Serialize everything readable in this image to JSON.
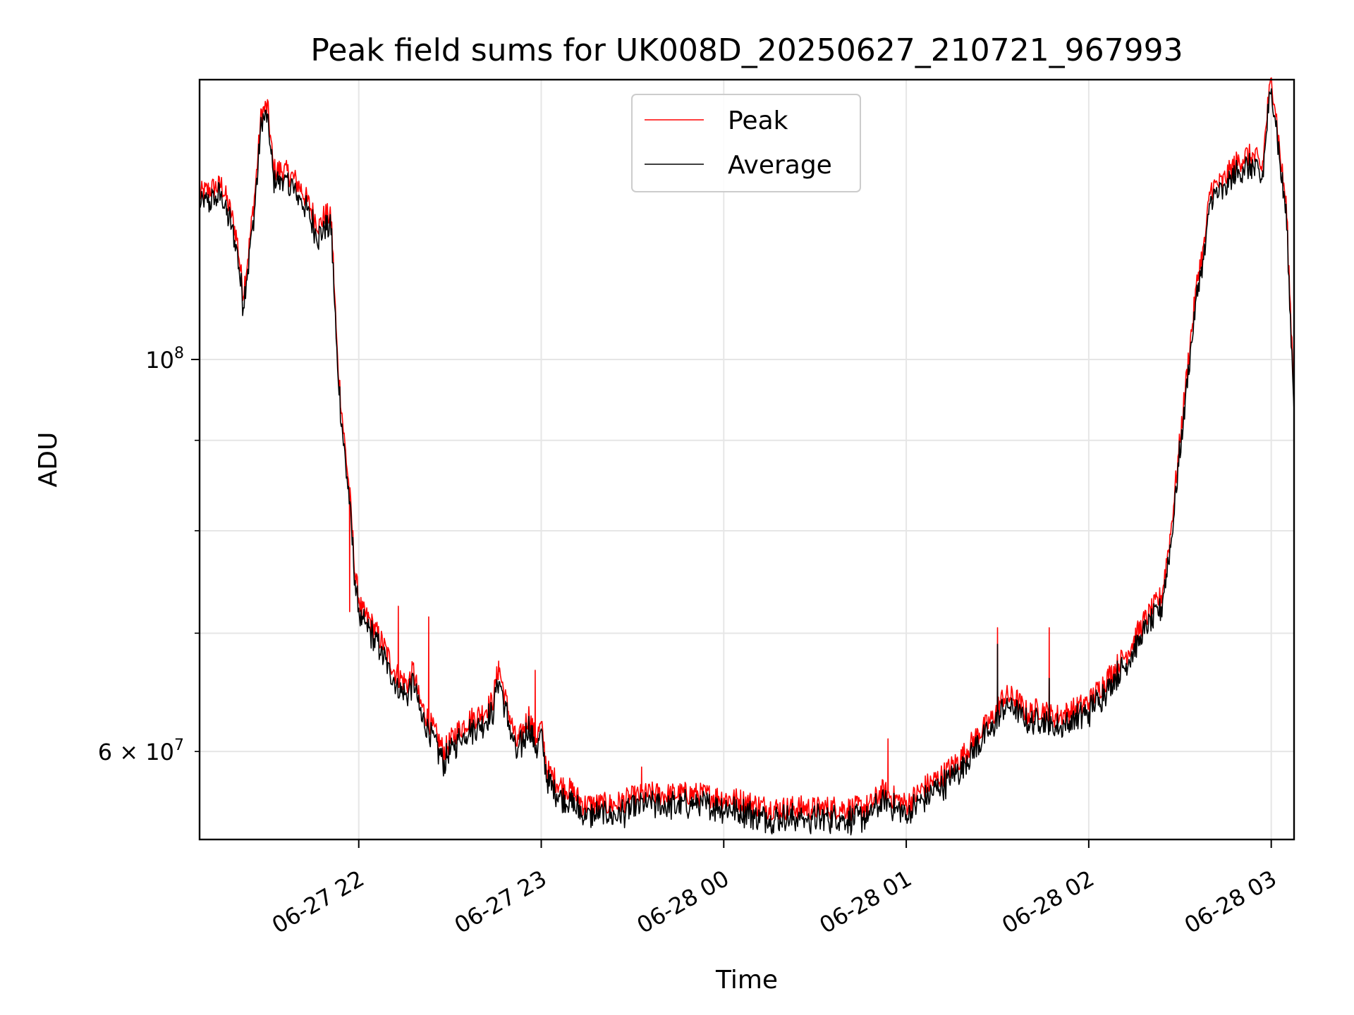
{
  "chart_data": {
    "type": "line",
    "title": "Peak field sums for UK008D_20250627_210721_967993",
    "xlabel": "Time",
    "ylabel": "ADU",
    "yscale": "log",
    "ylim": [
      53500000,
      144000000
    ],
    "xlim": [
      "2025-06-27 21:07:40",
      "2025-06-28 03:07:30"
    ],
    "grid": true,
    "legend_position": "upper center",
    "x_ticks": [
      "06-27 22",
      "06-27 23",
      "06-28 00",
      "06-28 01",
      "06-28 02",
      "06-28 03"
    ],
    "x_tick_times": [
      "2025-06-27 22:00",
      "2025-06-27 23:00",
      "2025-06-28 00:00",
      "2025-06-28 01:00",
      "2025-06-28 02:00",
      "2025-06-28 03:00"
    ],
    "y_tick_labels": {
      "major": "10^8",
      "minor_labeled": "6 × 10^7"
    },
    "series": [
      {
        "name": "Peak",
        "color": "#ff0000",
        "points": [
          [
            "2025-06-27 21:07:40",
            124000000
          ],
          [
            "2025-06-27 21:12",
            125000000
          ],
          [
            "2025-06-27 21:15",
            125500000
          ],
          [
            "2025-06-27 21:18",
            121000000
          ],
          [
            "2025-06-27 21:20",
            117000000
          ],
          [
            "2025-06-27 21:22",
            109000000
          ],
          [
            "2025-06-27 21:24",
            116000000
          ],
          [
            "2025-06-27 21:26",
            125000000
          ],
          [
            "2025-06-27 21:28",
            138000000
          ],
          [
            "2025-06-27 21:30",
            139000000
          ],
          [
            "2025-06-27 21:32",
            128000000
          ],
          [
            "2025-06-27 21:35",
            128000000
          ],
          [
            "2025-06-27 21:38",
            127000000
          ],
          [
            "2025-06-27 21:41",
            125000000
          ],
          [
            "2025-06-27 21:44",
            122000000
          ],
          [
            "2025-06-27 21:47",
            119000000
          ],
          [
            "2025-06-27 21:49",
            121000000
          ],
          [
            "2025-06-27 21:51",
            120000000
          ],
          [
            "2025-06-27 21:53",
            100000000
          ],
          [
            "2025-06-27 21:55",
            91000000
          ],
          [
            "2025-06-27 21:57",
            84000000
          ],
          [
            "2025-06-27 21:59",
            75000000
          ],
          [
            "2025-06-27 22:01",
            72000000
          ],
          [
            "2025-06-27 22:04",
            71000000
          ],
          [
            "2025-06-27 22:08",
            69000000
          ],
          [
            "2025-06-27 22:12",
            66500000
          ],
          [
            "2025-06-27 22:16",
            65500000
          ],
          [
            "2025-06-27 22:18",
            66700000
          ],
          [
            "2025-06-27 22:20",
            64000000
          ],
          [
            "2025-06-27 22:24",
            62000000
          ],
          [
            "2025-06-27 22:28",
            60000000
          ],
          [
            "2025-06-27 22:32",
            61500000
          ],
          [
            "2025-06-27 22:36",
            62500000
          ],
          [
            "2025-06-27 22:40",
            63000000
          ],
          [
            "2025-06-27 22:44",
            64000000
          ],
          [
            "2025-06-27 22:46",
            67000000
          ],
          [
            "2025-06-27 22:48",
            64500000
          ],
          [
            "2025-06-27 22:52",
            60500000
          ],
          [
            "2025-06-27 22:56",
            63000000
          ],
          [
            "2025-06-27 22:58",
            61000000
          ],
          [
            "2025-06-27 23:00",
            62000000
          ],
          [
            "2025-06-27 23:02",
            58500000
          ],
          [
            "2025-06-27 23:06",
            57500000
          ],
          [
            "2025-06-27 23:10",
            57000000
          ],
          [
            "2025-06-27 23:14",
            56000000
          ],
          [
            "2025-06-27 23:18",
            56000000
          ],
          [
            "2025-06-27 23:24",
            56000000
          ],
          [
            "2025-06-27 23:30",
            56500000
          ],
          [
            "2025-06-27 23:36",
            56800000
          ],
          [
            "2025-06-27 23:42",
            56700000
          ],
          [
            "2025-06-27 23:48",
            56800000
          ],
          [
            "2025-06-27 23:54",
            56700000
          ],
          [
            "2025-06-28 00:00",
            56500000
          ],
          [
            "2025-06-28 00:06",
            56300000
          ],
          [
            "2025-06-28 00:12",
            55900000
          ],
          [
            "2025-06-28 00:18",
            55700000
          ],
          [
            "2025-06-28 00:24",
            55800000
          ],
          [
            "2025-06-28 00:30",
            55700000
          ],
          [
            "2025-06-28 00:36",
            55800000
          ],
          [
            "2025-06-28 00:42",
            55700000
          ],
          [
            "2025-06-28 00:48",
            55900000
          ],
          [
            "2025-06-28 00:52",
            57000000
          ],
          [
            "2025-06-28 00:56",
            56500000
          ],
          [
            "2025-06-28 01:00",
            56000000
          ],
          [
            "2025-06-28 01:06",
            57300000
          ],
          [
            "2025-06-28 01:12",
            58200000
          ],
          [
            "2025-06-28 01:18",
            59500000
          ],
          [
            "2025-06-28 01:24",
            61500000
          ],
          [
            "2025-06-28 01:28",
            62500000
          ],
          [
            "2025-06-28 01:32",
            64500000
          ],
          [
            "2025-06-28 01:36",
            64300000
          ],
          [
            "2025-06-28 01:40",
            63000000
          ],
          [
            "2025-06-28 01:44",
            63500000
          ],
          [
            "2025-06-28 01:48",
            62800000
          ],
          [
            "2025-06-28 01:52",
            63000000
          ],
          [
            "2025-06-28 01:56",
            63500000
          ],
          [
            "2025-06-28 02:00",
            64000000
          ],
          [
            "2025-06-28 02:06",
            66000000
          ],
          [
            "2025-06-28 02:12",
            68000000
          ],
          [
            "2025-06-28 02:18",
            71000000
          ],
          [
            "2025-06-28 02:24",
            73500000
          ],
          [
            "2025-06-28 02:27",
            80000000
          ],
          [
            "2025-06-28 02:30",
            90000000
          ],
          [
            "2025-06-28 02:33",
            101000000
          ],
          [
            "2025-06-28 02:36",
            112000000
          ],
          [
            "2025-06-28 02:38",
            116000000
          ],
          [
            "2025-06-28 02:40",
            125000000
          ],
          [
            "2025-06-28 02:44",
            126000000
          ],
          [
            "2025-06-28 02:48",
            129000000
          ],
          [
            "2025-06-28 02:52",
            130500000
          ],
          [
            "2025-06-28 02:55",
            130000000
          ],
          [
            "2025-06-28 02:57",
            128000000
          ],
          [
            "2025-06-28 02:59",
            140000000
          ],
          [
            "2025-06-28 03:00",
            143500000
          ],
          [
            "2025-06-28 03:01",
            141000000
          ],
          [
            "2025-06-28 03:03",
            130000000
          ],
          [
            "2025-06-28 03:05",
            122000000
          ],
          [
            "2025-06-28 03:06",
            110000000
          ],
          [
            "2025-06-28 03:07:30",
            96000000
          ]
        ],
        "spikes": [
          [
            "2025-06-27 21:57",
            72000000
          ],
          [
            "2025-06-27 22:13",
            72500000
          ],
          [
            "2025-06-27 22:23",
            71500000
          ],
          [
            "2025-06-27 22:46",
            67500000
          ],
          [
            "2025-06-27 22:58",
            66700000
          ],
          [
            "2025-06-27 23:33",
            58800000
          ],
          [
            "2025-06-28 00:54",
            61000000
          ],
          [
            "2025-06-28 01:30",
            70500000
          ],
          [
            "2025-06-28 01:47",
            70500000
          ]
        ]
      },
      {
        "name": "Average",
        "color": "#000000",
        "offset_ratio": 0.986,
        "spikes": [
          [
            "2025-06-28 01:30",
            69000000
          ],
          [
            "2025-06-28 01:47",
            66000000
          ]
        ]
      }
    ]
  }
}
